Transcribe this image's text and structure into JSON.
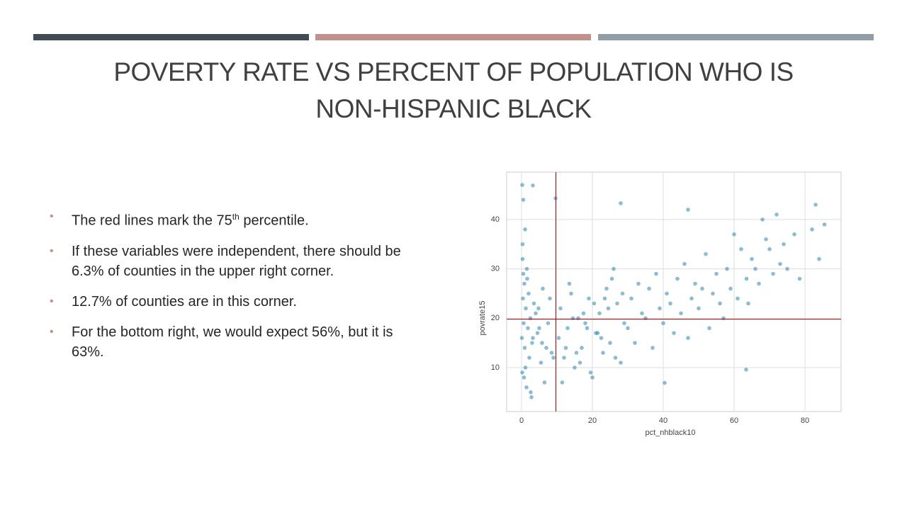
{
  "title": "POVERTY RATE VS PERCENT OF POPULATION WHO IS NON-HISPANIC BLACK",
  "bullets": [
    {
      "text": "The red lines mark the 75",
      "sup": "th",
      "after": " percentile."
    },
    {
      "text": "If these variables were independent, there should be 6.3% of counties in the upper right corner."
    },
    {
      "text": "12.7% of counties are in this corner."
    },
    {
      "text": "For the bottom right, we would expect 56%, but it is 63%."
    }
  ],
  "chart_data": {
    "type": "scatter",
    "x_label": "pct_nhblack10",
    "y_label": "povrate15",
    "color": "#1a7aa3",
    "grid": true,
    "xlim": [
      -4.2,
      90.2
    ],
    "ylim": [
      1.1,
      49.6
    ],
    "xticks": [
      0,
      20,
      40,
      60,
      80
    ],
    "yticks": [
      10,
      20,
      30,
      40
    ],
    "reference_lines": {
      "x": 9.7,
      "y": 19.8,
      "color": "#a00000"
    },
    "x": [
      0.2,
      0.5,
      1,
      0.3,
      1.5,
      0.8,
      2,
      0.4,
      1.2,
      2.5,
      0.6,
      1.8,
      0.1,
      3,
      0.9,
      2.2,
      1.1,
      0.7,
      1.4,
      2.8,
      0.3,
      0.5,
      1.6,
      0.2,
      3.5,
      4,
      5,
      4.5,
      6,
      7,
      5.5,
      8,
      6.5,
      9,
      3.2,
      4.8,
      7.5,
      8.5,
      2.6,
      5.8,
      10.5,
      11,
      12,
      13,
      14,
      15,
      16,
      17,
      18,
      19,
      20,
      21,
      22,
      23,
      24,
      25,
      26,
      27,
      28,
      29,
      11.5,
      13.5,
      15.5,
      17.5,
      19.5,
      21.5,
      23.5,
      25.5,
      12.5,
      14.5,
      16.5,
      18.5,
      20.5,
      22.5,
      24.5,
      26.5,
      28.5,
      30,
      31,
      32,
      33,
      34,
      35,
      36,
      37,
      38,
      39,
      40,
      41,
      42,
      43,
      44,
      45,
      46,
      47,
      48,
      49,
      50,
      51,
      52,
      53,
      54,
      55,
      56,
      57,
      58,
      59,
      60,
      61,
      62,
      63.5,
      64,
      65,
      66,
      67,
      68,
      69,
      70,
      71,
      72,
      73,
      74,
      75,
      77,
      78.5,
      82,
      83,
      84,
      85.5,
      3.2,
      9.6,
      28,
      47,
      63.4,
      40.4
    ],
    "y": [
      47,
      44,
      38,
      35,
      30,
      27,
      25,
      24,
      22,
      20,
      19,
      18,
      16,
      15,
      14,
      12,
      10,
      8,
      6,
      4,
      32,
      29,
      28,
      9,
      23,
      21,
      18,
      17,
      26,
      14,
      11,
      24,
      7,
      12,
      16,
      22,
      19,
      13,
      5,
      15,
      16,
      22,
      12,
      18,
      25,
      10,
      20,
      14,
      19,
      24,
      8,
      17,
      21,
      13,
      26,
      15,
      30,
      23,
      11,
      19,
      7,
      27,
      13,
      21,
      9,
      17,
      24,
      28,
      14,
      20,
      11,
      18,
      23,
      16,
      22,
      12,
      25,
      18,
      24,
      15,
      27,
      21,
      20,
      26,
      14,
      29,
      22,
      19,
      25,
      23,
      17,
      28,
      21,
      31,
      16,
      24,
      27,
      22,
      26,
      33,
      18,
      25,
      29,
      23,
      20,
      30,
      26,
      37,
      24,
      34,
      28,
      23,
      32,
      30,
      27,
      40,
      36,
      34,
      29,
      41,
      31,
      35,
      30,
      37,
      28,
      38,
      43,
      32,
      39,
      46.9,
      44.3,
      43.3,
      42,
      9.6,
      6.9
    ]
  }
}
